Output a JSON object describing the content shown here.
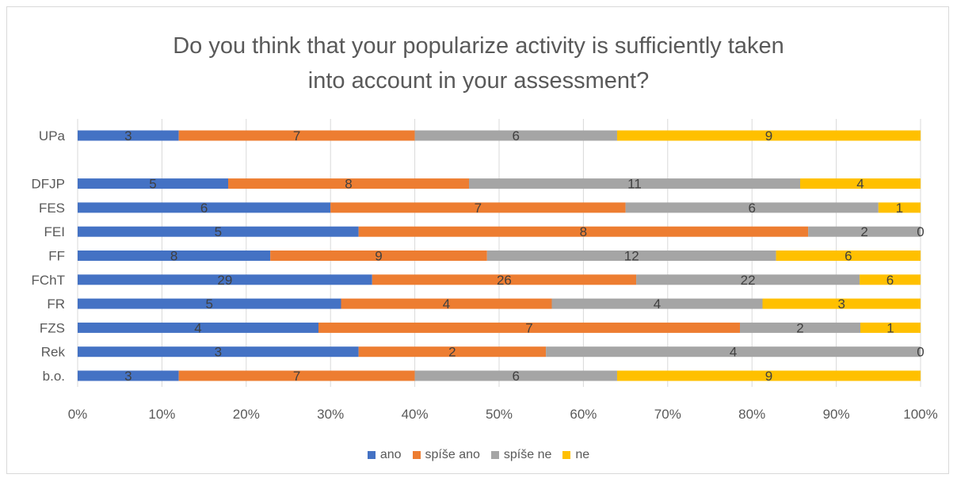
{
  "chart_data": {
    "type": "bar",
    "orientation": "horizontal",
    "stacked": "percent",
    "title": "Do you think that your popularize activity is sufficiently taken into account in your assessment?",
    "title_lines": [
      "Do you think that your popularize activity is sufficiently taken",
      "into account in your assessment?"
    ],
    "categories": [
      "UPa",
      "",
      "DFJP",
      "FES",
      "FEI",
      "FF",
      "FChT",
      "FR",
      "FZS",
      "Rek",
      "b.o."
    ],
    "series": [
      {
        "name": "ano",
        "color": "#4472c4",
        "values": [
          3,
          null,
          5,
          6,
          5,
          8,
          29,
          5,
          4,
          3,
          3
        ]
      },
      {
        "name": "spíše ano",
        "color": "#ed7d31",
        "values": [
          7,
          null,
          8,
          7,
          8,
          9,
          26,
          4,
          7,
          2,
          7
        ]
      },
      {
        "name": "spíše ne",
        "color": "#a5a5a5",
        "values": [
          6,
          null,
          11,
          6,
          2,
          12,
          22,
          4,
          2,
          4,
          6
        ]
      },
      {
        "name": "ne",
        "color": "#ffc000",
        "values": [
          9,
          null,
          4,
          1,
          0,
          6,
          6,
          3,
          1,
          0,
          9
        ]
      }
    ],
    "x_ticks": [
      "0%",
      "10%",
      "20%",
      "30%",
      "40%",
      "50%",
      "60%",
      "70%",
      "80%",
      "90%",
      "100%"
    ],
    "xlim": [
      0,
      100
    ],
    "grid": true,
    "legend_position": "bottom",
    "data_labels": true
  }
}
